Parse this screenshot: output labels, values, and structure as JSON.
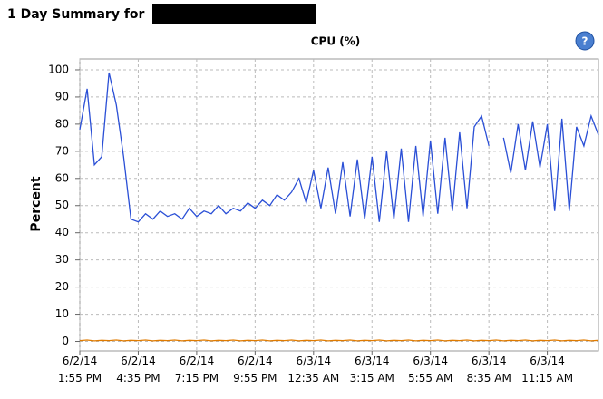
{
  "header": {
    "title": "1 Day Summary for"
  },
  "help_icon": "?",
  "chart_data": {
    "type": "line",
    "title": "CPU (%)",
    "ylabel": "Percent",
    "categories": [
      "6/2/14\n1:55 PM",
      null,
      null,
      null,
      null,
      null,
      null,
      null,
      "6/2/14\n4:35 PM",
      null,
      null,
      null,
      null,
      null,
      null,
      null,
      "6/2/14\n7:15 PM",
      null,
      null,
      null,
      null,
      null,
      null,
      null,
      "6/2/14\n9:55 PM",
      null,
      null,
      null,
      null,
      null,
      null,
      null,
      "6/3/14\n12:35 AM",
      null,
      null,
      null,
      null,
      null,
      null,
      null,
      "6/3/14\n3:15 AM",
      null,
      null,
      null,
      null,
      null,
      null,
      null,
      "6/3/14\n5:55 AM",
      null,
      null,
      null,
      null,
      null,
      null,
      null,
      "6/3/14\n8:35 AM",
      null,
      null,
      null,
      null,
      null,
      null,
      null,
      "6/3/14\n11:15 AM",
      null,
      null,
      null,
      null,
      null,
      null,
      null
    ],
    "series": [
      {
        "color": "#2a4fd6",
        "values": [
          78,
          93,
          65,
          68,
          99,
          87,
          68,
          45,
          44,
          47,
          45,
          48,
          46,
          47,
          45,
          49,
          46,
          48,
          47,
          50,
          47,
          49,
          48,
          51,
          49,
          52,
          50,
          54,
          52,
          55,
          60,
          51,
          63,
          49,
          64,
          47,
          66,
          46,
          67,
          45,
          68,
          44,
          70,
          45,
          71,
          44,
          72,
          46,
          74,
          47,
          75,
          48,
          77,
          49,
          79,
          83,
          72,
          null,
          75,
          62,
          80,
          63,
          81,
          64,
          80,
          48,
          82,
          48,
          79,
          72,
          83,
          76
        ]
      },
      {
        "color": "#e07b00",
        "values": [
          0.3,
          0.5,
          0.2,
          0.4,
          0.3,
          0.5,
          0.2,
          0.4,
          0.3,
          0.5,
          0.2,
          0.4,
          0.3,
          0.5,
          0.2,
          0.4,
          0.3,
          0.5,
          0.2,
          0.4,
          0.3,
          0.5,
          0.2,
          0.4,
          0.3,
          0.5,
          0.2,
          0.4,
          0.3,
          0.5,
          0.2,
          0.4,
          0.3,
          0.5,
          0.2,
          0.4,
          0.3,
          0.5,
          0.2,
          0.4,
          0.3,
          0.5,
          0.2,
          0.4,
          0.3,
          0.5,
          0.2,
          0.4,
          0.3,
          0.5,
          0.2,
          0.4,
          0.3,
          0.5,
          0.2,
          0.4,
          0.3,
          0.5,
          0.2,
          0.4,
          0.3,
          0.5,
          0.2,
          0.4,
          0.3,
          0.5,
          0.2,
          0.4,
          0.3,
          0.5,
          0.2,
          0.4
        ]
      }
    ],
    "ylim": [
      -3.5,
      104
    ],
    "yticks": [
      0,
      10,
      20,
      30,
      40,
      50,
      60,
      70,
      80,
      90,
      100
    ],
    "grid": true
  }
}
